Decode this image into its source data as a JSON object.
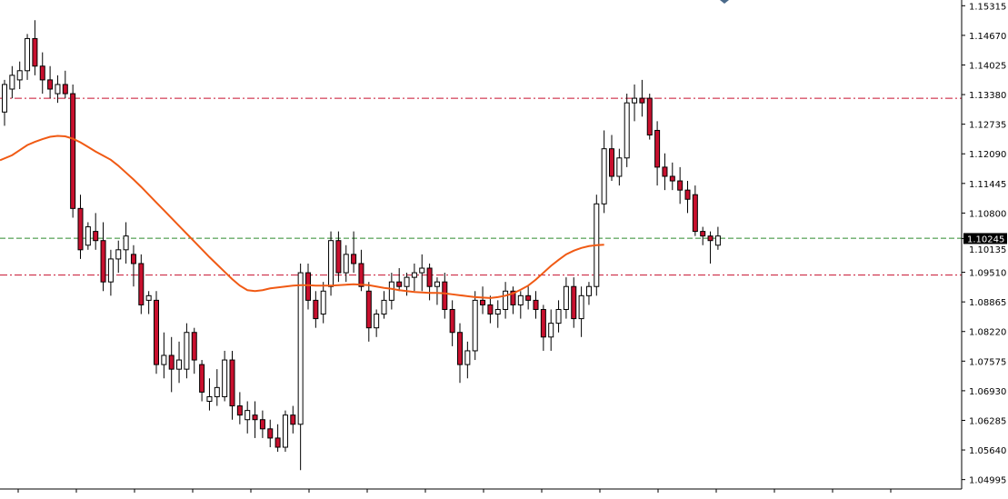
{
  "chart_data": {
    "type": "candlestick",
    "symbol": "",
    "price_axis": {
      "ticks": [
        "1.15315",
        "1.14670",
        "1.14025",
        "1.13380",
        "1.12735",
        "1.12090",
        "1.11445",
        "1.10800",
        "1.10245",
        "1.09510",
        "1.08865",
        "1.08220",
        "1.07575",
        "1.06930",
        "1.06285",
        "1.05640",
        "1.04995"
      ],
      "range": [
        1.0479,
        1.1544
      ]
    },
    "current_price": {
      "label": "1.10245",
      "value": 1.10245,
      "color": "#000000"
    },
    "secondary_price_label": "1.10135",
    "horizontal_lines": [
      {
        "value": 1.133,
        "style": "dash-dot",
        "color": "#c8102e"
      },
      {
        "value": 1.1025,
        "style": "dashed",
        "color": "#2e8b2e"
      },
      {
        "value": 1.0945,
        "style": "dash-dot",
        "color": "#c8102e"
      }
    ],
    "moving_average": {
      "color": "#f05a14",
      "values": [
        1.1195,
        1.1206,
        1.1217,
        1.1228,
        1.1235,
        1.1241,
        1.1246,
        1.1248,
        1.1247,
        1.1242,
        1.1234,
        1.1224,
        1.1214,
        1.1205,
        1.1196,
        1.1183,
        1.1168,
        1.1153,
        1.1137,
        1.112,
        1.1103,
        1.1086,
        1.1069,
        1.1052,
        1.1035,
        1.1018,
        1.1001,
        1.0984,
        1.0968,
        1.0952,
        1.0936,
        1.0922,
        1.0912,
        1.091,
        1.0912,
        1.0916,
        1.0918,
        1.092,
        1.0922,
        1.0923,
        1.0923,
        1.0922,
        1.0922,
        1.0922,
        1.0923,
        1.0924,
        1.0925,
        1.0924,
        1.0923,
        1.092,
        1.0917,
        1.0915,
        1.0912,
        1.091,
        1.0908,
        1.0907,
        1.0906,
        1.0906,
        1.0905,
        1.0903,
        1.0901,
        1.0899,
        1.0897,
        1.0896,
        1.0895,
        1.0897,
        1.09,
        1.0905,
        1.0913,
        1.0922,
        1.0935,
        1.095,
        1.0965,
        1.0978,
        1.099,
        1.0998,
        1.1004,
        1.1008,
        1.101,
        1.1011
      ]
    },
    "candles": [
      [
        1.13,
        1.137,
        1.127,
        1.136
      ],
      [
        1.135,
        1.14,
        1.133,
        1.138
      ],
      [
        1.137,
        1.141,
        1.135,
        1.139
      ],
      [
        1.139,
        1.147,
        1.137,
        1.146
      ],
      [
        1.146,
        1.15,
        1.138,
        1.14
      ],
      [
        1.14,
        1.143,
        1.134,
        1.137
      ],
      [
        1.137,
        1.14,
        1.133,
        1.135
      ],
      [
        1.134,
        1.138,
        1.132,
        1.136
      ],
      [
        1.136,
        1.139,
        1.133,
        1.134
      ],
      [
        1.134,
        1.136,
        1.107,
        1.109
      ],
      [
        1.109,
        1.112,
        1.098,
        1.1
      ],
      [
        1.101,
        1.106,
        1.1,
        1.105
      ],
      [
        1.104,
        1.108,
        1.1,
        1.102
      ],
      [
        1.102,
        1.106,
        1.091,
        1.093
      ],
      [
        1.093,
        1.1,
        1.09,
        1.098
      ],
      [
        1.098,
        1.102,
        1.095,
        1.1
      ],
      [
        1.1,
        1.106,
        1.097,
        1.103
      ],
      [
        1.099,
        1.101,
        1.092,
        1.097
      ],
      [
        1.097,
        1.099,
        1.086,
        1.088
      ],
      [
        1.089,
        1.091,
        1.086,
        1.09
      ],
      [
        1.089,
        1.091,
        1.073,
        1.075
      ],
      [
        1.075,
        1.082,
        1.072,
        1.077
      ],
      [
        1.077,
        1.081,
        1.069,
        1.074
      ],
      [
        1.074,
        1.08,
        1.071,
        1.076
      ],
      [
        1.074,
        1.084,
        1.072,
        1.082
      ],
      [
        1.082,
        1.083,
        1.073,
        1.076
      ],
      [
        1.075,
        1.076,
        1.067,
        1.069
      ],
      [
        1.067,
        1.072,
        1.065,
        1.068
      ],
      [
        1.068,
        1.074,
        1.066,
        1.07
      ],
      [
        1.068,
        1.078,
        1.067,
        1.076
      ],
      [
        1.076,
        1.078,
        1.063,
        1.066
      ],
      [
        1.066,
        1.069,
        1.062,
        1.064
      ],
      [
        1.063,
        1.067,
        1.06,
        1.065
      ],
      [
        1.064,
        1.067,
        1.059,
        1.063
      ],
      [
        1.063,
        1.065,
        1.059,
        1.061
      ],
      [
        1.061,
        1.063,
        1.057,
        1.059
      ],
      [
        1.059,
        1.062,
        1.056,
        1.057
      ],
      [
        1.057,
        1.065,
        1.056,
        1.064
      ],
      [
        1.064,
        1.066,
        1.06,
        1.062
      ],
      [
        1.062,
        1.097,
        1.052,
        1.095
      ],
      [
        1.095,
        1.097,
        1.087,
        1.089
      ],
      [
        1.089,
        1.091,
        1.083,
        1.085
      ],
      [
        1.086,
        1.093,
        1.084,
        1.091
      ],
      [
        1.092,
        1.104,
        1.09,
        1.102
      ],
      [
        1.102,
        1.104,
        1.093,
        1.095
      ],
      [
        1.095,
        1.101,
        1.093,
        1.099
      ],
      [
        1.099,
        1.104,
        1.095,
        1.097
      ],
      [
        1.097,
        1.1,
        1.091,
        1.092
      ],
      [
        1.091,
        1.093,
        1.08,
        1.083
      ],
      [
        1.083,
        1.087,
        1.081,
        1.086
      ],
      [
        1.086,
        1.091,
        1.085,
        1.089
      ],
      [
        1.089,
        1.095,
        1.087,
        1.093
      ],
      [
        1.093,
        1.096,
        1.091,
        1.092
      ],
      [
        1.092,
        1.095,
        1.09,
        1.094
      ],
      [
        1.094,
        1.097,
        1.091,
        1.095
      ],
      [
        1.095,
        1.099,
        1.091,
        1.096
      ],
      [
        1.096,
        1.097,
        1.089,
        1.092
      ],
      [
        1.092,
        1.094,
        1.088,
        1.093
      ],
      [
        1.093,
        1.095,
        1.085,
        1.087
      ],
      [
        1.087,
        1.089,
        1.079,
        1.082
      ],
      [
        1.082,
        1.084,
        1.071,
        1.075
      ],
      [
        1.075,
        1.08,
        1.072,
        1.078
      ],
      [
        1.078,
        1.091,
        1.076,
        1.089
      ],
      [
        1.089,
        1.092,
        1.086,
        1.088
      ],
      [
        1.088,
        1.09,
        1.084,
        1.086
      ],
      [
        1.086,
        1.089,
        1.083,
        1.087
      ],
      [
        1.087,
        1.093,
        1.085,
        1.091
      ],
      [
        1.091,
        1.092,
        1.086,
        1.088
      ],
      [
        1.088,
        1.091,
        1.085,
        1.09
      ],
      [
        1.09,
        1.092,
        1.087,
        1.089
      ],
      [
        1.089,
        1.091,
        1.085,
        1.087
      ],
      [
        1.087,
        1.088,
        1.078,
        1.081
      ],
      [
        1.081,
        1.087,
        1.078,
        1.084
      ],
      [
        1.084,
        1.089,
        1.082,
        1.087
      ],
      [
        1.087,
        1.094,
        1.085,
        1.092
      ],
      [
        1.092,
        1.094,
        1.083,
        1.085
      ],
      [
        1.085,
        1.092,
        1.081,
        1.09
      ],
      [
        1.09,
        1.093,
        1.088,
        1.092
      ],
      [
        1.092,
        1.112,
        1.09,
        1.11
      ],
      [
        1.11,
        1.126,
        1.108,
        1.122
      ],
      [
        1.122,
        1.125,
        1.115,
        1.116
      ],
      [
        1.116,
        1.122,
        1.114,
        1.12
      ],
      [
        1.12,
        1.134,
        1.118,
        1.132
      ],
      [
        1.132,
        1.136,
        1.128,
        1.133
      ],
      [
        1.133,
        1.137,
        1.129,
        1.132
      ],
      [
        1.133,
        1.134,
        1.124,
        1.125
      ],
      [
        1.126,
        1.128,
        1.114,
        1.118
      ],
      [
        1.118,
        1.121,
        1.113,
        1.116
      ],
      [
        1.116,
        1.119,
        1.113,
        1.115
      ],
      [
        1.115,
        1.118,
        1.11,
        1.113
      ],
      [
        1.113,
        1.115,
        1.108,
        1.111
      ],
      [
        1.112,
        1.114,
        1.103,
        1.104
      ],
      [
        1.104,
        1.105,
        1.101,
        1.103
      ],
      [
        1.103,
        1.104,
        1.097,
        1.102
      ],
      [
        1.101,
        1.105,
        1.1,
        1.103
      ]
    ]
  }
}
